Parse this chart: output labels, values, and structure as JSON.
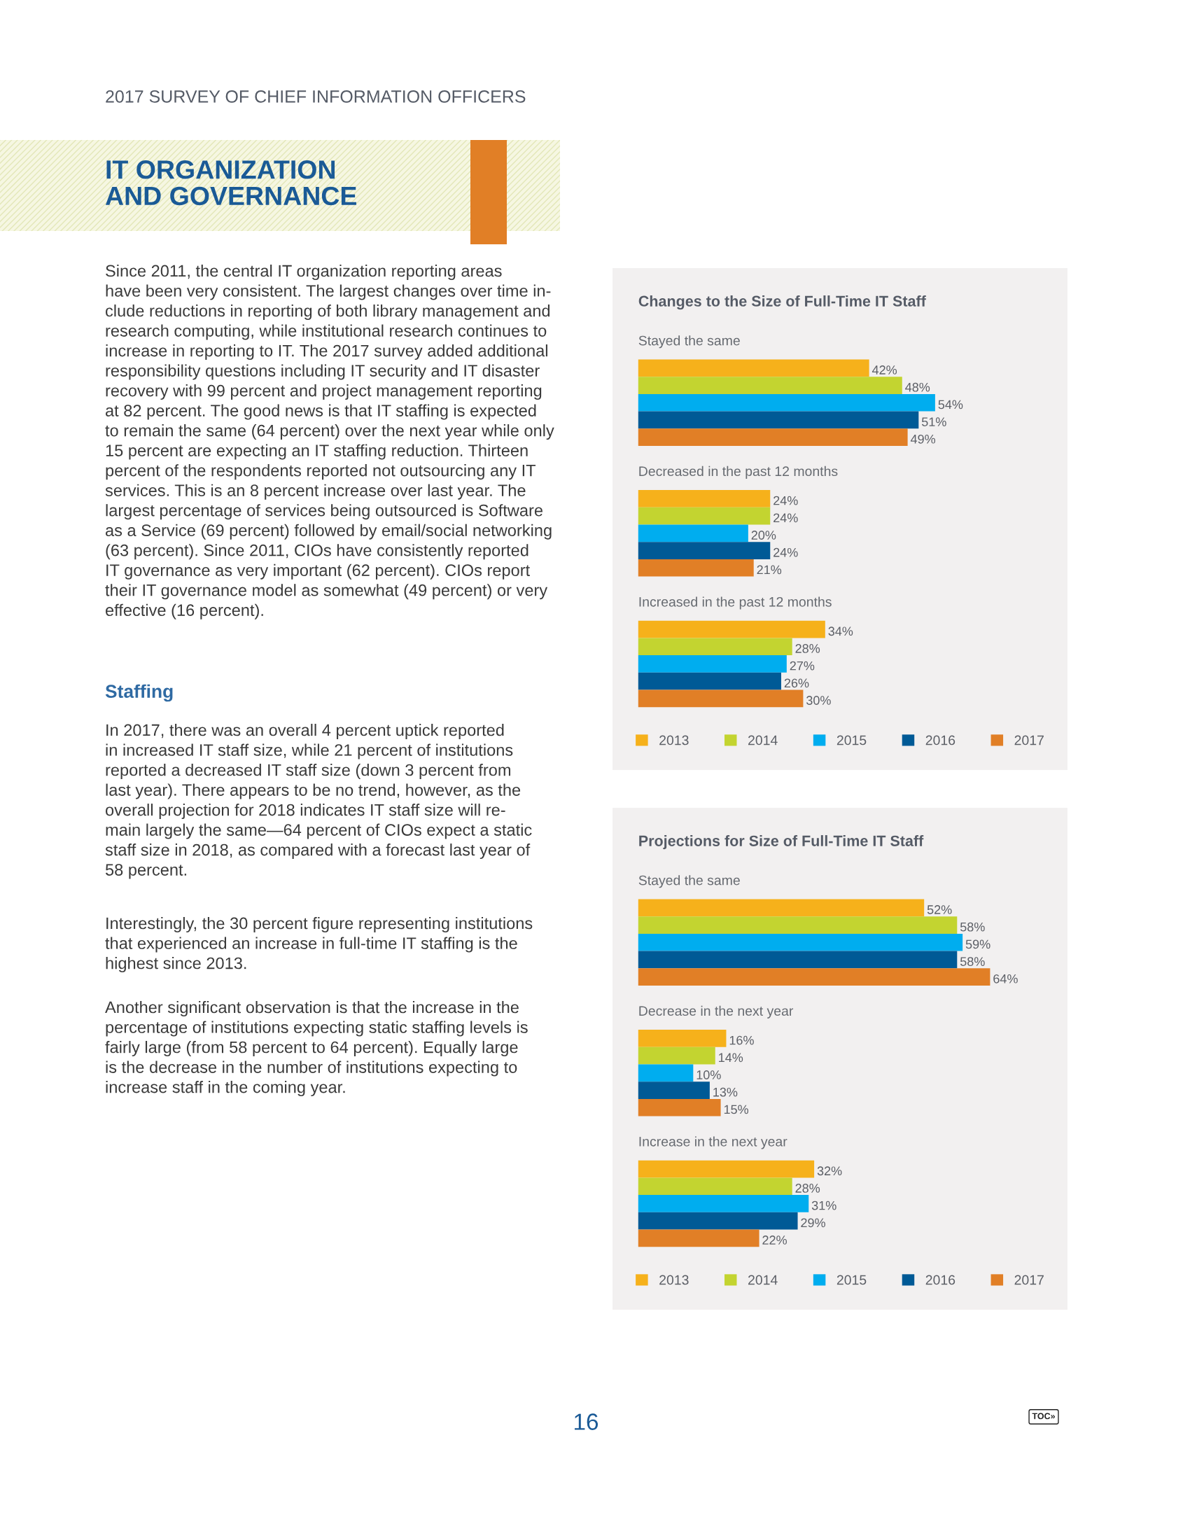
{
  "chart_data": [
    {
      "type": "bar",
      "orientation": "horizontal",
      "title": "Changes to the Size of Full-Time IT Staff",
      "categories": [
        "Stayed the same",
        "Decreased in the past 12 months",
        "Increased in the past 12 months"
      ],
      "series": [
        {
          "name": "2013",
          "color": "#f6b11b",
          "values": [
            42,
            24,
            34
          ],
          "value_labels": [
            "42%",
            "24%",
            "34%"
          ]
        },
        {
          "name": "2014",
          "color": "#c3d430",
          "values": [
            48,
            24,
            28
          ],
          "value_labels": [
            "48%",
            "24%",
            "28%"
          ]
        },
        {
          "name": "2015",
          "color": "#00adef",
          "values": [
            54,
            20,
            27
          ],
          "value_labels": [
            "54%",
            "20%",
            "27%"
          ]
        },
        {
          "name": "2016",
          "color": "#005a96",
          "values": [
            51,
            24,
            26
          ],
          "value_labels": [
            "51%",
            "24%",
            "26%"
          ]
        },
        {
          "name": "2017",
          "color": "#e17f26",
          "values": [
            49,
            21,
            30
          ],
          "value_labels": [
            "49%",
            "21%",
            "30%"
          ]
        }
      ],
      "legend": "bottom",
      "annotations": [
        "2017 SURVEY OF CHIEF INFORMATION OFFICERS",
        "IT ORGANIZATION\nAND GOVERNANCE",
        "Since 2011, the central IT organization reporting areas\nhave been very consistent. The largest changes over time in-\nclude reductions in reporting of both library management and\nresearch computing, while institutional research continues to\nincrease in reporting to IT. The 2017 survey added additional\nresponsibility questions including IT security and IT disaster\nrecovery with 99 percent and project management reporting\nat 82 percent. The good news is that IT staffing is expected\nto remain the same (64 percent) over the next year while only\n15 percent are expecting an IT staffing reduction. Thirteen\npercent of the respondents reported not outsourcing any IT\nservices. This is an 8 percent increase over last year. The\nlargest percentage of services being outsourced is Software\nas a Service (69 percent) followed by email/social networking\n(63 percent). Since 2011, CIOs have consistently reported\nIT governance as very important (62 percent). CIOs report\ntheir IT governance model as somewhat (49 percent) or very\neffective (16 percent).",
        "Staffing",
        "In 2017, there was an overall 4 percent uptick reported\nin increased IT staff size, while 21 percent of institutions\nreported a decreased IT staff size (down 3 percent from\nlast year). There appears to be no trend, however, as the\noverall projection for 2018 indicates IT staff size will re-\nmain largely the same—64 percent of CIOs expect a static\nstaff size in 2018, as compared with a forecast last year of\n58 percent.",
        "Interestingly, the 30 percent figure representing institutions\nthat experienced an increase in full-time IT staffing is the\nhighest since 2013.",
        "Another significant observation is that the increase in the\npercentage of institutions expecting static staffing levels is\nfairly large (from 58 percent to 64 percent). Equally large\nis the decrease in the number of institutions expecting to\nincrease staff in the coming year.",
        "16",
        "TOC»"
      ]
    },
    {
      "type": "bar",
      "orientation": "horizontal",
      "title": "Projections for Size of Full-Time IT Staff",
      "categories": [
        "Stayed the same",
        "Decrease in the next year",
        "Increase in the next year"
      ],
      "series": [
        {
          "name": "2013",
          "color": "#f6b11b",
          "values": [
            52,
            16,
            32
          ],
          "value_labels": [
            "52%",
            "16%",
            "32%"
          ]
        },
        {
          "name": "2014",
          "color": "#c3d430",
          "values": [
            58,
            14,
            28
          ],
          "value_labels": [
            "58%",
            "14%",
            "28%"
          ]
        },
        {
          "name": "2015",
          "color": "#00adef",
          "values": [
            59,
            10,
            31
          ],
          "value_labels": [
            "59%",
            "10%",
            "31%"
          ]
        },
        {
          "name": "2016",
          "color": "#005a96",
          "values": [
            58,
            13,
            29
          ],
          "value_labels": [
            "58%",
            "13%",
            "29%"
          ]
        },
        {
          "name": "2017",
          "color": "#e17f26",
          "values": [
            64,
            15,
            22
          ],
          "value_labels": [
            "64%",
            "15%",
            "22%"
          ]
        }
      ],
      "legend": "bottom"
    }
  ]
}
